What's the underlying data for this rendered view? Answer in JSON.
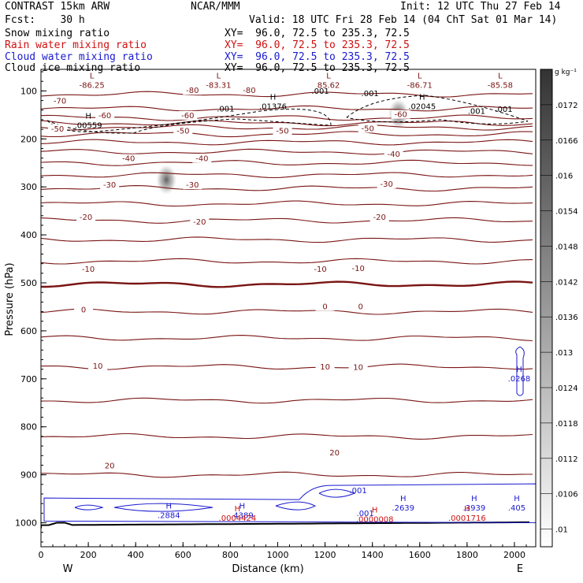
{
  "header": {
    "model": "CONTRAST 15km ARW",
    "org": "NCAR/MMM",
    "init": "Init: 12 UTC Thu 27 Feb 14",
    "fcst": "Fcst:    30 h",
    "valid": "Valid: 18 UTC Fri 28 Feb 14 (04 ChT Sat 01 Mar 14)",
    "fields": [
      {
        "name": "Snow mixing ratio",
        "xy": "XY=  96.0, 72.5 to 235.3, 72.5",
        "color": "#000000"
      },
      {
        "name": "Rain water mixing ratio",
        "xy": "XY=  96.0, 72.5 to 235.3, 72.5",
        "color": "#d01010"
      },
      {
        "name": "Cloud water mixing ratio",
        "xy": "XY=  96.0, 72.5 to 235.3, 72.5",
        "color": "#1a1ad0"
      },
      {
        "name": "Cloud ice mixing ratio",
        "xy": "XY=  96.0, 72.5 to 235.3, 72.5",
        "color": "#000000"
      }
    ]
  },
  "chart_data": {
    "type": "contour cross-section",
    "xlabel": "Distance (km)",
    "ylabel": "Pressure (hPa)",
    "xlim": [
      0,
      2090
    ],
    "ylim": [
      1050,
      55
    ],
    "x_ticks": [
      0,
      200,
      400,
      600,
      800,
      1000,
      1200,
      1400,
      1600,
      1800,
      2000
    ],
    "y_ticks": [
      100,
      200,
      300,
      400,
      500,
      600,
      700,
      800,
      900,
      1000
    ],
    "left_end": "W",
    "right_end": "E",
    "colorbar": {
      "unit": "g kg⁻¹",
      "labels": [
        ".0172",
        ".0166",
        ".016",
        ".0154",
        ".0148",
        ".0142",
        ".0136",
        ".013",
        ".0124",
        ".0118",
        ".0112",
        ".0106",
        ".01"
      ],
      "label_values": [
        0.0172,
        0.0166,
        0.016,
        0.0154,
        0.0148,
        0.0142,
        0.0136,
        0.013,
        0.0124,
        0.0118,
        0.0112,
        0.0106,
        0.01
      ],
      "range": [
        0.0097,
        0.0178
      ]
    },
    "temperature_contours": {
      "color": "#7a1414",
      "interval_C": 5,
      "levels": [
        {
          "t": -75,
          "p": 107
        },
        {
          "t": -70,
          "p": 137
        },
        {
          "t": -65,
          "p": 156
        },
        {
          "t": -60,
          "p": 167
        },
        {
          "t": -55,
          "p": 176
        },
        {
          "t": -50,
          "p": 190
        },
        {
          "t": -45,
          "p": 207
        },
        {
          "t": -40,
          "p": 227
        },
        {
          "t": -35,
          "p": 250
        },
        {
          "t": -30,
          "p": 275
        },
        {
          "t": -25,
          "p": 303
        },
        {
          "t": -20,
          "p": 335
        },
        {
          "t": -15,
          "p": 370
        },
        {
          "t": -10,
          "p": 410
        },
        {
          "t": -5,
          "p": 455
        },
        {
          "t": 0,
          "p": 503
        },
        {
          "t": 5,
          "p": 560
        },
        {
          "t": 10,
          "p": 615
        },
        {
          "t": 15,
          "p": 675
        },
        {
          "t": 20,
          "p": 745
        },
        {
          "t": 25,
          "p": 820
        },
        {
          "t": 30,
          "p": 900
        }
      ],
      "labels": [
        {
          "text": "-70",
          "x": 80,
          "p": 125
        },
        {
          "text": "-80",
          "x": 640,
          "p": 103
        },
        {
          "text": "-80",
          "x": 880,
          "p": 103
        },
        {
          "text": "-60",
          "x": 270,
          "p": 155
        },
        {
          "text": "-60",
          "x": 620,
          "p": 155
        },
        {
          "text": "-60",
          "x": 1520,
          "p": 153
        },
        {
          "text": "-50",
          "x": 70,
          "p": 183
        },
        {
          "text": "-50",
          "x": 600,
          "p": 187
        },
        {
          "text": "-50",
          "x": 1020,
          "p": 187
        },
        {
          "text": "-50",
          "x": 1380,
          "p": 182
        },
        {
          "text": "-40",
          "x": 370,
          "p": 245
        },
        {
          "text": "-40",
          "x": 680,
          "p": 245
        },
        {
          "text": "-40",
          "x": 1490,
          "p": 236
        },
        {
          "text": "-30",
          "x": 290,
          "p": 300
        },
        {
          "text": "-30",
          "x": 640,
          "p": 300
        },
        {
          "text": "-30",
          "x": 1460,
          "p": 298
        },
        {
          "text": "-20",
          "x": 190,
          "p": 367
        },
        {
          "text": "-20",
          "x": 670,
          "p": 377
        },
        {
          "text": "-20",
          "x": 1430,
          "p": 367
        },
        {
          "text": "-10",
          "x": 200,
          "p": 475
        },
        {
          "text": "-10",
          "x": 1180,
          "p": 475
        },
        {
          "text": "-10",
          "x": 1340,
          "p": 474
        },
        {
          "text": "0",
          "x": 180,
          "p": 560
        },
        {
          "text": "0",
          "x": 1200,
          "p": 553
        },
        {
          "text": "0",
          "x": 1350,
          "p": 553
        },
        {
          "text": "10",
          "x": 240,
          "p": 677
        },
        {
          "text": "10",
          "x": 1200,
          "p": 679
        },
        {
          "text": "10",
          "x": 1340,
          "p": 680
        },
        {
          "text": "20",
          "x": 290,
          "p": 885
        },
        {
          "text": "20",
          "x": 1240,
          "p": 858
        }
      ]
    },
    "cloud_ice": {
      "color": "#000000",
      "highs": [
        {
          "label": "H",
          "value": ".00559",
          "x": 200,
          "p": 169
        },
        {
          "label": "H",
          "value": ".01376",
          "x": 980,
          "p": 130
        },
        {
          "label": "H",
          "value": ".02045",
          "x": 1610,
          "p": 130
        }
      ],
      "lows": [
        {
          "label": "L",
          "value": "-86.25",
          "x": 215,
          "p": 85
        },
        {
          "label": "L",
          "value": "-83.31",
          "x": 750,
          "p": 85
        },
        {
          "label": "L",
          "value": "85.62",
          "x": 1215,
          "p": 85
        },
        {
          "label": "L",
          "value": "-86.71",
          "x": 1600,
          "p": 85
        },
        {
          "label": "L",
          "value": "-85.58",
          "x": 1940,
          "p": 85
        }
      ],
      "contour_labels": [
        {
          "text": ".001",
          "x": 780,
          "p": 143
        },
        {
          "text": ".001",
          "x": 1180,
          "p": 106
        },
        {
          "text": ".001",
          "x": 1390,
          "p": 111
        },
        {
          "text": ".001",
          "x": 1840,
          "p": 148
        },
        {
          "text": ".001",
          "x": 1955,
          "p": 144
        }
      ]
    },
    "cloud_water": {
      "color": "#1a1ad0",
      "highs": [
        {
          "label": "H",
          "value": ".2884",
          "x": 540,
          "p": 982
        },
        {
          "label": "H",
          "value": ".4389",
          "x": 850,
          "p": 982
        },
        {
          "label": "H",
          "value": ".2639",
          "x": 1530,
          "p": 966
        },
        {
          "label": "H",
          "value": ".3939",
          "x": 1830,
          "p": 966
        },
        {
          "label": "H",
          "value": ".405",
          "x": 2010,
          "p": 966
        },
        {
          "label": "H",
          "value": ".0268",
          "x": 2020,
          "p": 697
        }
      ],
      "contour_labels": [
        {
          "text": ".001",
          "x": 1340,
          "p": 938
        },
        {
          "text": ".001",
          "x": 1370,
          "p": 986
        }
      ]
    },
    "rain_water": {
      "color": "#d01010",
      "highs": [
        {
          "label": "H",
          "value": ".0004424",
          "x": 830,
          "p": 988
        },
        {
          "label": "H",
          "value": ".0000008",
          "x": 1410,
          "p": 990
        },
        {
          "label": "H",
          "value": ".0001716",
          "x": 1800,
          "p": 988
        }
      ]
    },
    "snow_shading": [
      {
        "x": 530,
        "p": 285,
        "value": 0.0165
      },
      {
        "x": 1510,
        "p": 148,
        "value": 0.017
      }
    ],
    "surface_pressure_hPa": 1005
  }
}
